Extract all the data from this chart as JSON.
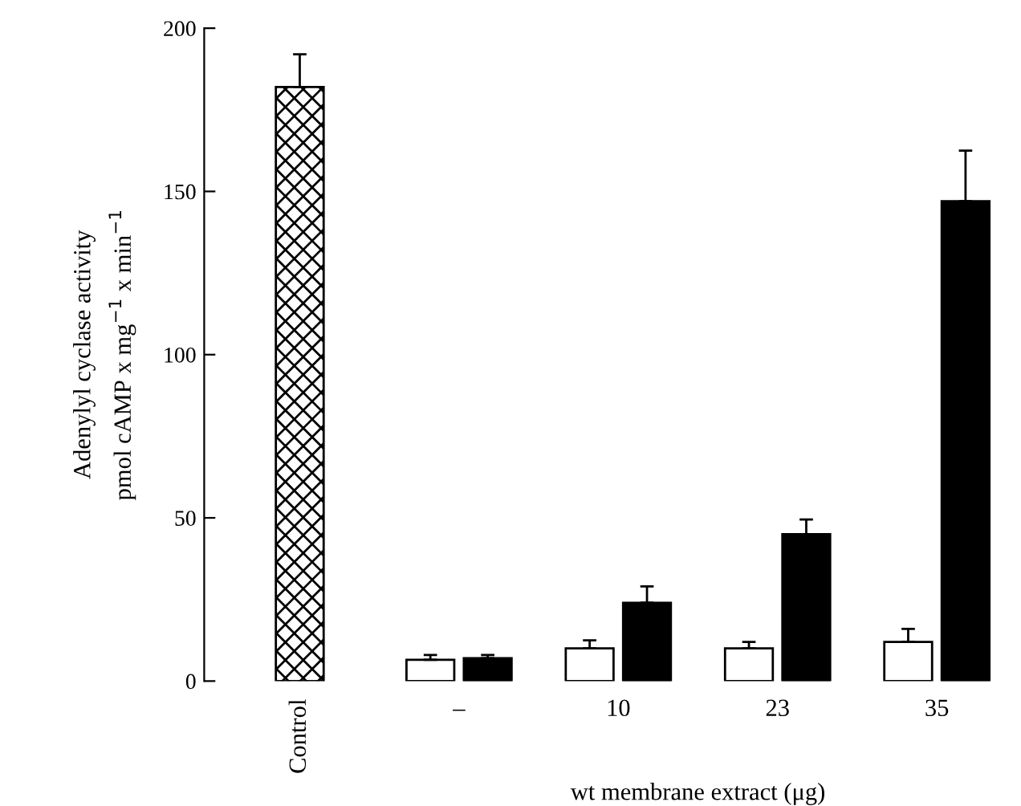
{
  "chart_data": {
    "type": "bar",
    "categories": [
      "Control",
      "–",
      "10",
      "23",
      "35"
    ],
    "xlabel": "wt membrane extract (μg)",
    "ylabel": "Adenylyl cyclase activity\npmol cAMP x mg$^{−1}$ x min$^{−1}$",
    "ylim": [
      0,
      200
    ],
    "yticks": [
      0,
      50,
      100,
      150,
      200
    ],
    "grid": false,
    "legend": false,
    "series": [
      {
        "color": "#000000",
        "values": [
          182,
          null,
          null,
          null,
          null
        ],
        "errors": [
          10,
          null,
          null,
          null,
          null
        ]
      },
      {
        "color": "#ffffff",
        "values": [
          null,
          6.5,
          10,
          10,
          12
        ],
        "errors": [
          null,
          1.5,
          2.5,
          2,
          4
        ]
      },
      {
        "color": "#000000",
        "values": [
          null,
          7,
          24,
          45,
          147
        ],
        "errors": [
          null,
          1,
          5,
          4.5,
          15.5
        ]
      }
    ]
  }
}
